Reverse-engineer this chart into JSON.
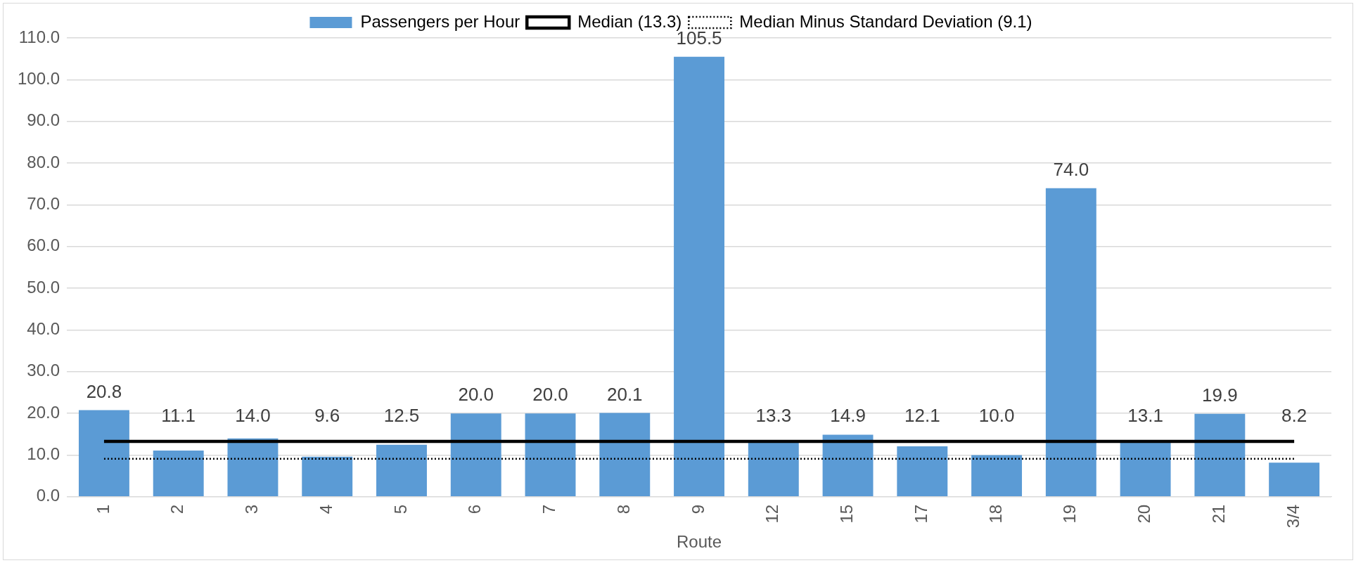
{
  "chart_data": {
    "type": "bar",
    "xlabel": "Route",
    "categories": [
      "1",
      "2",
      "3",
      "4",
      "5",
      "6",
      "7",
      "8",
      "9",
      "12",
      "15",
      "17",
      "18",
      "19",
      "20",
      "21",
      "3/4"
    ],
    "series": [
      {
        "name": "Passengers per Hour",
        "color": "#5b9bd5",
        "values": [
          20.8,
          11.1,
          14.0,
          9.6,
          12.5,
          20.0,
          20.0,
          20.1,
          105.5,
          13.3,
          14.9,
          12.1,
          10.0,
          74.0,
          13.1,
          19.9,
          8.2
        ],
        "value_labels": [
          "20.8",
          "11.1",
          "14.0",
          "9.6",
          "12.5",
          "20.0",
          "20.0",
          "20.1",
          "105.5",
          "13.3",
          "14.9",
          "12.1",
          "10.0",
          "74.0",
          "13.1",
          "19.9",
          "8.2"
        ]
      },
      {
        "name": "Median (13.3)",
        "type": "line",
        "color": "#000000",
        "line_style": "solid",
        "values": [
          13.3,
          13.3,
          13.3,
          13.3,
          13.3,
          13.3,
          13.3,
          13.3,
          13.3,
          13.3,
          13.3,
          13.3,
          13.3,
          13.3,
          13.3,
          13.3,
          13.3
        ]
      },
      {
        "name": "Median Minus Standard Deviation (9.1)",
        "type": "line",
        "color": "#000000",
        "line_style": "dotted",
        "values": [
          9.1,
          9.1,
          9.1,
          9.1,
          9.1,
          9.1,
          9.1,
          9.1,
          9.1,
          9.1,
          9.1,
          9.1,
          9.1,
          9.1,
          9.1,
          9.1,
          9.1
        ]
      }
    ],
    "ylim": [
      0,
      110
    ],
    "yticks": [
      {
        "value": 0,
        "label": "0.0"
      },
      {
        "value": 10,
        "label": "10.0"
      },
      {
        "value": 20,
        "label": "20.0"
      },
      {
        "value": 30,
        "label": "30.0"
      },
      {
        "value": 40,
        "label": "40.0"
      },
      {
        "value": 50,
        "label": "50.0"
      },
      {
        "value": 60,
        "label": "60.0"
      },
      {
        "value": 70,
        "label": "70.0"
      },
      {
        "value": 80,
        "label": "80.0"
      },
      {
        "value": 90,
        "label": "90.0"
      },
      {
        "value": 100,
        "label": "100.0"
      },
      {
        "value": 110,
        "label": "110.0"
      }
    ],
    "grid": "y",
    "legend": "top",
    "marker": "none"
  }
}
